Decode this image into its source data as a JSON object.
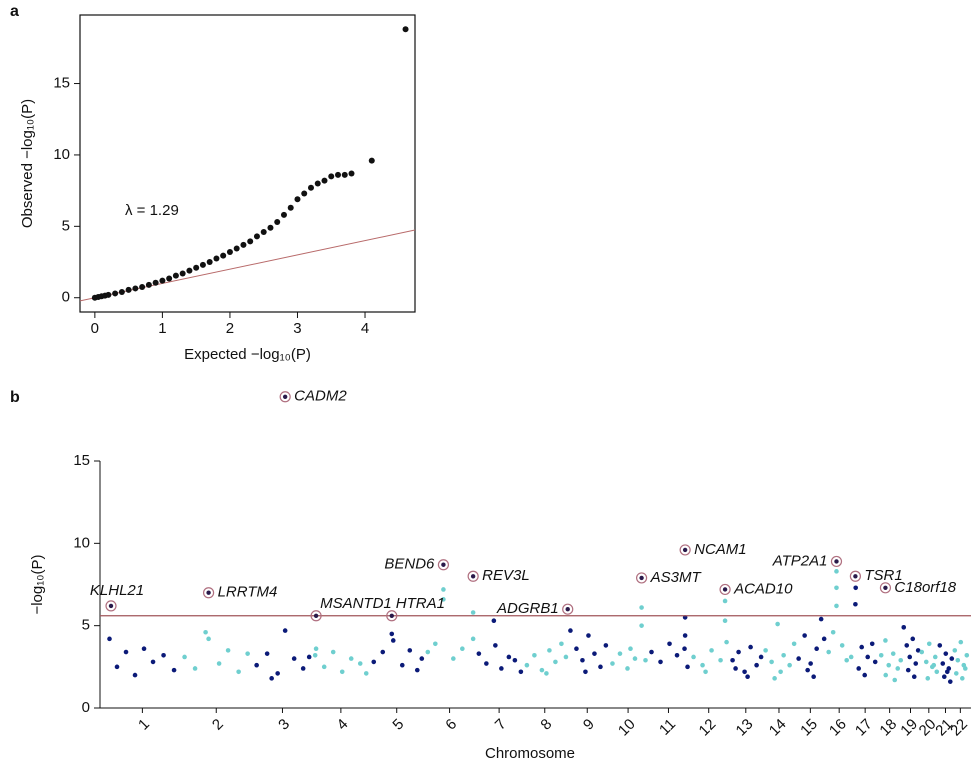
{
  "chart_data": [
    {
      "type": "scatter",
      "panel_label": "a",
      "x_label": "Expected −log₁₀(P)",
      "y_label": "Observed −log₁₀(P)",
      "annotation": "λ = 1.29",
      "xlim": [
        -0.22,
        4.74
      ],
      "ylim": [
        -1,
        19.8
      ],
      "xticks": [
        0,
        1,
        2,
        3,
        4
      ],
      "yticks": [
        0,
        5,
        10,
        15
      ],
      "color": "#111111",
      "reference_color": "#b86a6a",
      "x": [
        0,
        0.05,
        0.1,
        0.15,
        0.2,
        0.3,
        0.4,
        0.5,
        0.6,
        0.7,
        0.8,
        0.9,
        1.0,
        1.1,
        1.2,
        1.3,
        1.4,
        1.5,
        1.6,
        1.7,
        1.8,
        1.9,
        2.0,
        2.1,
        2.2,
        2.3,
        2.4,
        2.5,
        2.6,
        2.7,
        2.8,
        2.9,
        3.0,
        3.1,
        3.2,
        3.3,
        3.4,
        3.5,
        3.6,
        3.7,
        3.8,
        4.1,
        4.6
      ],
      "values": [
        0,
        0.05,
        0.1,
        0.15,
        0.2,
        0.3,
        0.4,
        0.55,
        0.65,
        0.75,
        0.9,
        1.05,
        1.2,
        1.35,
        1.55,
        1.7,
        1.9,
        2.1,
        2.3,
        2.5,
        2.75,
        2.95,
        3.2,
        3.45,
        3.7,
        3.95,
        4.3,
        4.6,
        4.9,
        5.3,
        5.8,
        6.3,
        6.9,
        7.3,
        7.7,
        8.0,
        8.2,
        8.5,
        8.6,
        8.6,
        8.7,
        9.6,
        18.8
      ]
    },
    {
      "type": "manhattan",
      "panel_label": "b",
      "x_label": "Chromosome",
      "y_label": "−log₁₀(P)",
      "xlim": [
        0,
        2874
      ],
      "ylim": [
        0,
        15
      ],
      "yticks": [
        0,
        5,
        10,
        15
      ],
      "threshold": 5.6,
      "threshold_color": "#a0555a",
      "xticks": [
        {
          "value": 124.5,
          "label": "1"
        },
        {
          "value": 370.5,
          "label": "2"
        },
        {
          "value": 591,
          "label": "3"
        },
        {
          "value": 785.5,
          "label": "4"
        },
        {
          "value": 971.5,
          "label": "5"
        },
        {
          "value": 1147.5,
          "label": "6"
        },
        {
          "value": 1312.5,
          "label": "7"
        },
        {
          "value": 1464.5,
          "label": "8"
        },
        {
          "value": 1606,
          "label": "9"
        },
        {
          "value": 1742,
          "label": "10"
        },
        {
          "value": 1876.5,
          "label": "11"
        },
        {
          "value": 2010.5,
          "label": "12"
        },
        {
          "value": 2134,
          "label": "13"
        },
        {
          "value": 2244.5,
          "label": "14"
        },
        {
          "value": 2349,
          "label": "15"
        },
        {
          "value": 2445,
          "label": "16"
        },
        {
          "value": 2531.5,
          "label": "17"
        },
        {
          "value": 2613,
          "label": "18"
        },
        {
          "value": 2682.5,
          "label": "19"
        },
        {
          "value": 2743.5,
          "label": "20"
        },
        {
          "value": 2799,
          "label": "21"
        },
        {
          "value": 2848.5,
          "label": "22"
        }
      ],
      "series": [
        {
          "color": "#0b1a78",
          "x": [
            15,
            40,
            70,
            100,
            130,
            160,
            195,
            230,
            505,
            540,
            575,
            600,
            630,
            660,
            680,
            555,
            895,
            925,
            955,
            960,
            990,
            1015,
            1040,
            1055,
            1245,
            1270,
            1295,
            1320,
            1345,
            1365,
            1385,
            1300,
            1550,
            1570,
            1590,
            1610,
            1630,
            1650,
            1668,
            1600,
            1820,
            1850,
            1880,
            1905,
            1932,
            1932,
            1930,
            1940,
            2090,
            2110,
            2130,
            2150,
            2170,
            2185,
            2140,
            2100,
            2310,
            2330,
            2350,
            2370,
            2385,
            2395,
            2340,
            2360,
            2500,
            2499,
            2520,
            2540,
            2555,
            2565,
            2510,
            2530,
            2660,
            2670,
            2680,
            2690,
            2700,
            2708,
            2675,
            2695,
            2780,
            2790,
            2800,
            2810,
            2820,
            2795,
            2805,
            2815
          ],
          "values": [
            4.2,
            2.5,
            3.4,
            2.0,
            3.6,
            2.8,
            3.2,
            2.3,
            2.6,
            3.3,
            2.1,
            4.7,
            3.0,
            2.4,
            3.1,
            1.8,
            2.8,
            3.4,
            4.5,
            4.1,
            2.6,
            3.5,
            2.3,
            3.0,
            3.3,
            2.7,
            5.3,
            2.4,
            3.1,
            2.9,
            2.2,
            3.8,
            4.7,
            3.6,
            2.9,
            4.4,
            3.3,
            2.5,
            3.8,
            2.2,
            3.4,
            2.8,
            3.9,
            3.2,
            5.5,
            4.4,
            3.6,
            2.5,
            2.9,
            3.4,
            2.2,
            3.7,
            2.6,
            3.1,
            1.9,
            2.4,
            3.0,
            4.4,
            2.7,
            3.6,
            5.4,
            4.2,
            2.3,
            1.9,
            7.3,
            6.3,
            3.7,
            3.1,
            3.9,
            2.8,
            2.4,
            2.0,
            4.9,
            3.8,
            3.1,
            4.2,
            2.7,
            3.5,
            2.3,
            1.9,
            3.8,
            2.7,
            3.3,
            2.4,
            3.0,
            1.9,
            2.2,
            1.6
          ]
        },
        {
          "color": "#6fcfcf",
          "x": [
            265,
            300,
            335,
            345,
            380,
            410,
            445,
            475,
            700,
            703,
            730,
            760,
            790,
            820,
            850,
            870,
            1075,
            1100,
            1127,
            1127,
            1160,
            1190,
            1226,
            1226,
            1405,
            1430,
            1455,
            1480,
            1500,
            1520,
            1535,
            1470,
            1690,
            1715,
            1740,
            1765,
            1787,
            1787,
            1800,
            1750,
            1960,
            1990,
            2020,
            2050,
            2065,
            2065,
            2070,
            2000,
            2200,
            2220,
            2240,
            2260,
            2280,
            2295,
            2250,
            2230,
            2410,
            2425,
            2436,
            2436,
            2436,
            2455,
            2470,
            2485,
            2585,
            2599,
            2610,
            2625,
            2640,
            2650,
            2600,
            2630,
            2720,
            2735,
            2745,
            2755,
            2765,
            2770,
            2740,
            2760,
            2830,
            2840,
            2850,
            2860,
            2870,
            2835,
            2855,
            2865
          ],
          "values": [
            3.1,
            2.4,
            4.6,
            4.2,
            2.7,
            3.5,
            2.2,
            3.3,
            3.2,
            3.6,
            2.5,
            3.4,
            2.2,
            3.0,
            2.7,
            2.1,
            3.4,
            3.9,
            7.2,
            6.6,
            3.0,
            3.6,
            5.8,
            4.2,
            2.6,
            3.2,
            2.3,
            3.5,
            2.8,
            3.9,
            3.1,
            2.1,
            2.7,
            3.3,
            2.4,
            3.0,
            6.1,
            5.0,
            2.9,
            3.6,
            3.1,
            2.6,
            3.5,
            2.9,
            6.5,
            5.3,
            4.0,
            2.2,
            3.5,
            2.8,
            5.1,
            3.2,
            2.6,
            3.9,
            2.2,
            1.8,
            3.4,
            4.6,
            8.3,
            7.3,
            6.2,
            3.8,
            2.9,
            3.1,
            3.2,
            4.1,
            2.6,
            3.3,
            2.4,
            2.9,
            2.0,
            1.7,
            3.4,
            2.8,
            3.9,
            2.5,
            3.1,
            2.2,
            1.8,
            2.6,
            3.5,
            2.9,
            4.0,
            2.6,
            3.2,
            2.1,
            1.8,
            2.4
          ]
        }
      ],
      "hits": [
        {
          "label": "KLHL21",
          "x": 20,
          "value": 6.2
        },
        {
          "label": "LRRTM4",
          "x": 345,
          "value": 7.0
        },
        {
          "label": "CADM2",
          "x": 600,
          "value": 18.9
        },
        {
          "label": "MSANTD1",
          "x": 703,
          "value": 5.6
        },
        {
          "label": "HTRA1",
          "x": 955,
          "value": 5.6
        },
        {
          "label": "BEND6",
          "x": 1127,
          "value": 8.7
        },
        {
          "label": "REV3L",
          "x": 1226,
          "value": 8.0
        },
        {
          "label": "ADGRB1",
          "x": 1541,
          "value": 6.0
        },
        {
          "label": "AS3MT",
          "x": 1787,
          "value": 7.9
        },
        {
          "label": "NCAM1",
          "x": 1932,
          "value": 9.6
        },
        {
          "label": "ACAD10",
          "x": 2065,
          "value": 7.2
        },
        {
          "label": "ATP2A1",
          "x": 2436,
          "value": 8.9
        },
        {
          "label": "TSR1",
          "x": 2499,
          "value": 8.0
        },
        {
          "label": "C18orf18",
          "x": 2599,
          "value": 7.3
        }
      ]
    }
  ]
}
